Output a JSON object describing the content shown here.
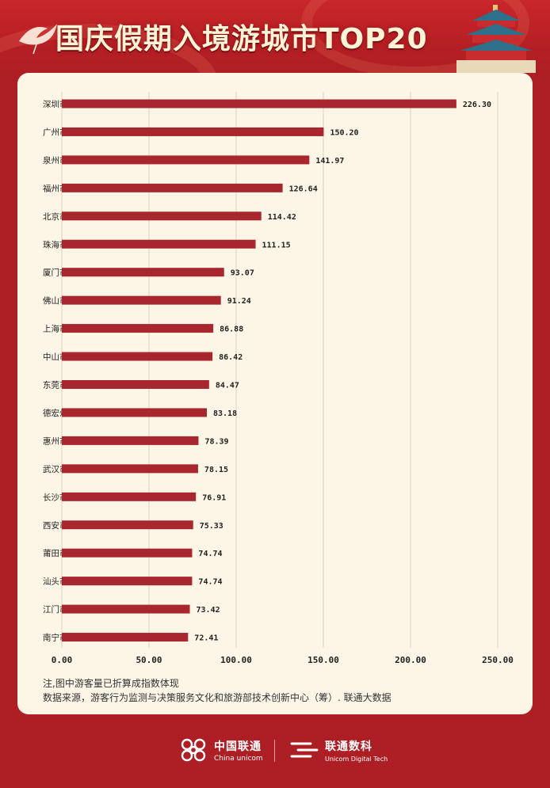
{
  "header": {
    "title": "国庆假期入境游城市TOP20"
  },
  "colors": {
    "bar": "#a8262e",
    "background": "#ad1f24",
    "card": "#fdf6e6",
    "grid": "#d9d2c3"
  },
  "chart_data": {
    "type": "bar",
    "orientation": "horizontal",
    "title": "国庆假期入境游城市TOP20",
    "categories": [
      "深圳市",
      "广州市",
      "泉州市",
      "福州市",
      "北京市",
      "珠海市",
      "厦门市",
      "佛山市",
      "上海市",
      "中山市",
      "东莞市",
      "德宏州",
      "惠州市",
      "武汉市",
      "长沙市",
      "西安市",
      "莆田市",
      "汕头市",
      "江门市",
      "南宁市"
    ],
    "values": [
      226.3,
      150.2,
      141.97,
      126.64,
      114.42,
      111.15,
      93.07,
      91.24,
      86.88,
      86.42,
      84.47,
      83.18,
      78.39,
      78.15,
      76.91,
      75.33,
      74.74,
      74.74,
      73.42,
      72.41
    ],
    "value_labels": [
      "226.30",
      "150.20",
      "141.97",
      "126.64",
      "114.42",
      "111.15",
      "93.07",
      "91.24",
      "86.88",
      "86.42",
      "84.47",
      "83.18",
      "78.39",
      "78.15",
      "76.91",
      "75.33",
      "74.74",
      "74.74",
      "73.42",
      "72.41"
    ],
    "xlim": [
      0,
      250
    ],
    "xticks": [
      "0.00",
      "50.00",
      "100.00",
      "150.00",
      "200.00",
      "250.00"
    ],
    "grid": "vertical"
  },
  "notes": {
    "line1": "注,图中游客量已折算成指数体现",
    "line2": "数据来源，游客行为监测与决策服务文化和旅游部技术创新中心（筹）. 联通大数据"
  },
  "footer": {
    "brand1_cn": "中国联通",
    "brand1_en": "China unicom",
    "brand2_cn": "联通数科",
    "brand2_en": "Unicom Digital Tech"
  }
}
